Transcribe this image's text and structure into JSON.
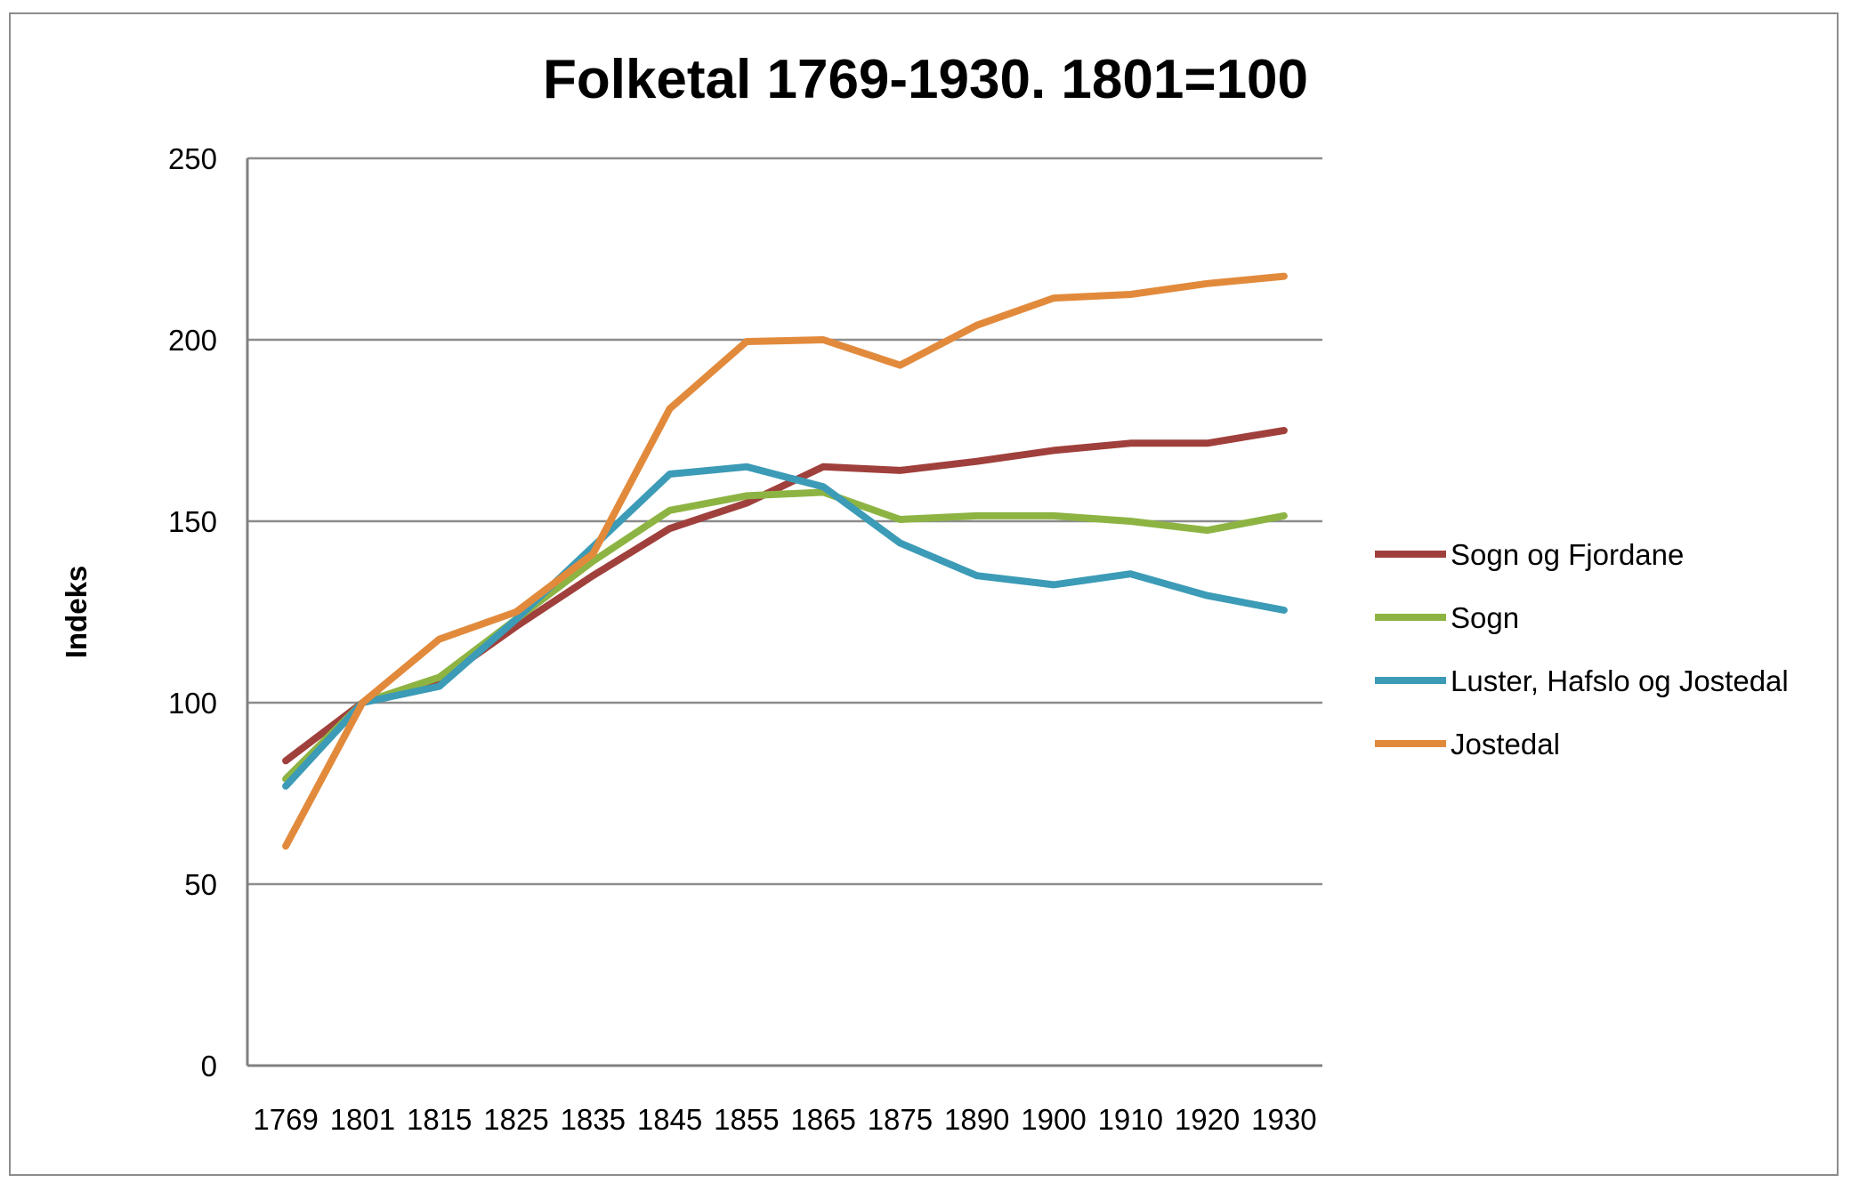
{
  "chart_data": {
    "type": "line",
    "title": "Folketal 1769-1930. 1801=100",
    "xlabel": "",
    "ylabel": "Indeks",
    "ylim": [
      0,
      250
    ],
    "yticks": [
      0,
      50,
      100,
      150,
      200,
      250
    ],
    "grid": true,
    "legend_position": "right",
    "categories": [
      "1769",
      "1801",
      "1815",
      "1825",
      "1835",
      "1845",
      "1855",
      "1865",
      "1875",
      "1890",
      "1900",
      "1910",
      "1920",
      "1930"
    ],
    "series": [
      {
        "name": "Sogn og Fjordane",
        "color": "#A0403C",
        "values": [
          84,
          100,
          106,
          121,
          135,
          148,
          155,
          165,
          164,
          166.5,
          169.5,
          171.5,
          171.5,
          175
        ]
      },
      {
        "name": "Sogn",
        "color": "#8DB443",
        "values": [
          79,
          100,
          107,
          123,
          139,
          153,
          157,
          158,
          150.5,
          151.5,
          151.5,
          150,
          147.5,
          151.5
        ]
      },
      {
        "name": "Luster, Hafslo og Jostedal",
        "color": "#3C9BB6",
        "values": [
          77,
          100,
          104.5,
          123,
          143,
          163,
          165,
          159.5,
          144,
          135,
          132.5,
          135.5,
          129.5,
          125.5
        ]
      },
      {
        "name": "Jostedal",
        "color": "#E28A3C",
        "values": [
          60.5,
          100,
          117.5,
          125,
          141,
          181,
          199.5,
          200,
          193,
          204,
          211.5,
          212.5,
          215.5,
          217.5
        ]
      }
    ]
  }
}
